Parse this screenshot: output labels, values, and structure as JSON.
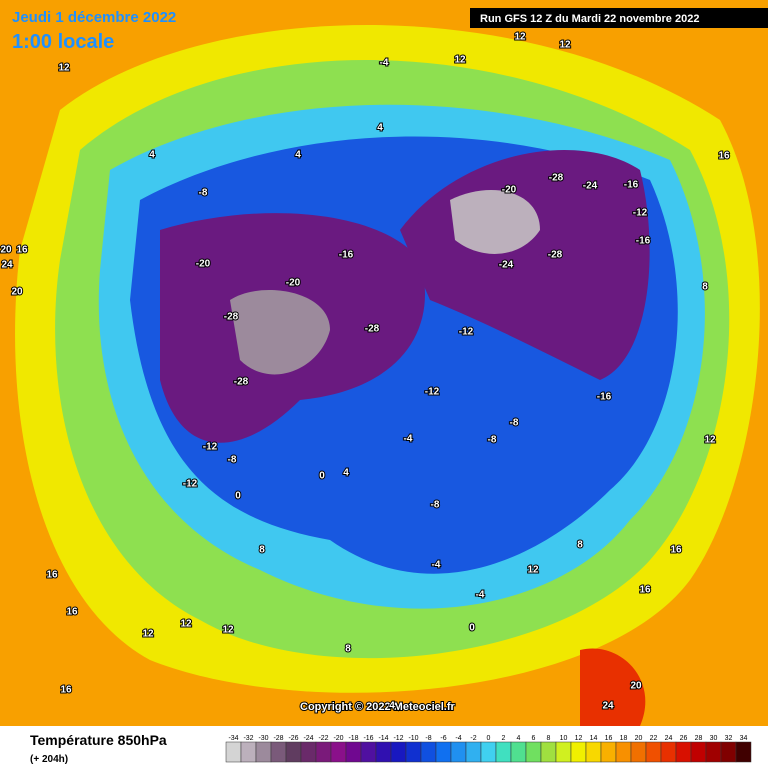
{
  "header": {
    "date": "Jeudi 1 décembre 2022",
    "time": "1:00 locale",
    "run": "Run GFS 12 Z du Mardi 22 novembre 2022"
  },
  "copyright": "Copyright © 2022 Meteociel.fr",
  "legend": {
    "title": "Température 850hPa",
    "subtitle": "(+ 204h)",
    "ticks": [
      -34,
      -32,
      -30,
      -28,
      -26,
      -24,
      -22,
      -20,
      -18,
      -16,
      -14,
      -12,
      -10,
      -8,
      -6,
      -4,
      -2,
      0,
      2,
      4,
      6,
      8,
      10,
      12,
      14,
      16,
      18,
      20,
      22,
      24,
      26,
      28,
      30,
      32,
      34
    ],
    "colors": [
      "#d4d4d4",
      "#bcb0bc",
      "#9c8a9c",
      "#7a5a7a",
      "#603c60",
      "#6a2a6a",
      "#7a1a7a",
      "#8a108a",
      "#700890",
      "#5010a0",
      "#3010b0",
      "#1818c0",
      "#1030d0",
      "#1050e0",
      "#1070f0",
      "#2090f0",
      "#30b0f0",
      "#40d0f0",
      "#40e0c0",
      "#50e090",
      "#70e060",
      "#a0e040",
      "#d0f020",
      "#f0f000",
      "#f8d800",
      "#f8b000",
      "#f89000",
      "#f07000",
      "#f05000",
      "#e83000",
      "#d81000",
      "#c00000",
      "#a00000",
      "#800000",
      "#400000"
    ]
  },
  "map": {
    "labels": [
      "12",
      "-4",
      "12",
      "12",
      "12",
      "4",
      "4",
      "4",
      "-8",
      "-16",
      "-20",
      "-20",
      "-28",
      "-28",
      "-28",
      "-20",
      "-28",
      "-24",
      "-16",
      "-24",
      "-28",
      "-12",
      "-16",
      "-12",
      "-12",
      "-8",
      "-8",
      "-16",
      "-12",
      "-12",
      "-8",
      "-4",
      "-8",
      "-4",
      "-4",
      "0",
      "0",
      "8",
      "12",
      "12",
      "12",
      "16",
      "16",
      "16",
      "16",
      "16",
      "20",
      "24",
      "16",
      "8",
      "12",
      "20",
      "16",
      "20",
      "24",
      "0",
      "4",
      "12",
      "8",
      "4",
      "8"
    ]
  }
}
